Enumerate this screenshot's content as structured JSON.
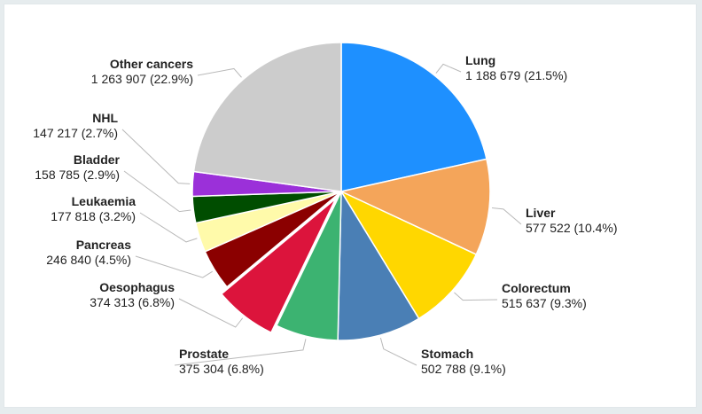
{
  "chart_data": {
    "type": "pie",
    "slices": [
      {
        "name": "Lung",
        "value": 1188679,
        "value_text": "1 188 679",
        "pct_text": "(21.5%)",
        "color": "#1e90ff"
      },
      {
        "name": "Liver",
        "value": 577522,
        "value_text": "577 522",
        "pct_text": "(10.4%)",
        "color": "#f4a55a"
      },
      {
        "name": "Colorectum",
        "value": 515637,
        "value_text": "515 637",
        "pct_text": "(9.3%)",
        "color": "#ffd700"
      },
      {
        "name": "Stomach",
        "value": 502788,
        "value_text": "502 788",
        "pct_text": "(9.1%)",
        "color": "#4a7fb5"
      },
      {
        "name": "Prostate",
        "value": 375304,
        "value_text": "375 304",
        "pct_text": "(6.8%)",
        "color": "#3cb371"
      },
      {
        "name": "Oesophagus",
        "value": 374313,
        "value_text": "374 313",
        "pct_text": "(6.8%)",
        "color": "#dc143c",
        "exploded": true
      },
      {
        "name": "Pancreas",
        "value": 246840,
        "value_text": "246 840",
        "pct_text": "(4.5%)",
        "color": "#8b0000"
      },
      {
        "name": "Leukaemia",
        "value": 177818,
        "value_text": "177 818",
        "pct_text": "(3.2%)",
        "color": "#fffaaa"
      },
      {
        "name": "Bladder",
        "value": 158785,
        "value_text": "158 785",
        "pct_text": "(2.9%)",
        "color": "#004d00"
      },
      {
        "name": "NHL",
        "value": 147217,
        "value_text": "147 217",
        "pct_text": "(2.7%)",
        "color": "#9b30d9"
      },
      {
        "name": "Other cancers",
        "value": 1263907,
        "value_text": "1 263 907",
        "pct_text": "(22.9%)",
        "color": "#cccccc"
      }
    ],
    "start_angle": "12 o'clock",
    "direction": "clockwise",
    "legend": "none (direct labels)"
  }
}
